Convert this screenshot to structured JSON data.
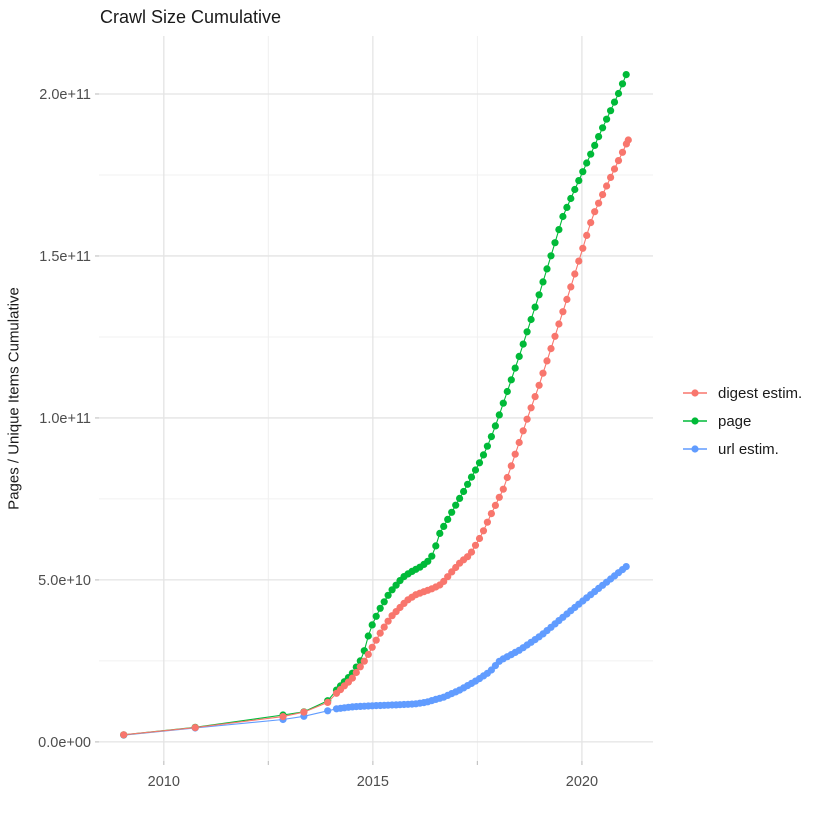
{
  "chart_data": {
    "type": "line",
    "title": "Crawl Size Cumulative",
    "xlabel": "",
    "ylabel": "Pages / Unique Items Cumulative",
    "grid": true,
    "marker": "point",
    "legend": {
      "position": "right",
      "entries": [
        "digest estim.",
        "page",
        "url estim."
      ]
    },
    "x_axis": {
      "range": [
        2008.45,
        2021.7
      ],
      "ticks_major": [
        2010,
        2015,
        2020
      ],
      "tick_labels": [
        "2010",
        "2015",
        "2020"
      ],
      "ticks_minor": [
        2012.5,
        2017.5
      ]
    },
    "y_axis": {
      "range": [
        -5900000000.0,
        217900000000.0
      ],
      "ticks_major": [
        0,
        50000000000.0,
        100000000000.0,
        150000000000.0,
        200000000000.0
      ],
      "tick_labels": [
        "0.0e+00",
        "5.0e+10",
        "1.0e+11",
        "1.5e+11",
        "2.0e+11"
      ],
      "ticks_minor": [
        25000000000.0,
        75000000000.0,
        125000000000.0,
        175000000000.0
      ]
    },
    "colors": {
      "digest": "#F8766D",
      "page": "#00BA38",
      "url": "#619CFF"
    },
    "point_interval_years": 0.095,
    "dense_from_year": 2014.0,
    "series": [
      {
        "name": "digest estim.",
        "color": "#F8766D",
        "points": [
          [
            2009.04,
            2200000000.0
          ],
          [
            2010.75,
            4400000000.0
          ],
          [
            2012.85,
            7800000000.0
          ],
          [
            2013.35,
            9200000000.0
          ],
          [
            2013.92,
            12200000000.0
          ],
          [
            2014.13,
            15000000000.0
          ],
          [
            2014.5,
            19500000000.0
          ],
          [
            2014.8,
            25000000000.0
          ],
          [
            2014.93,
            27900000000.0
          ],
          [
            2015.17,
            33500000000.0
          ],
          [
            2015.44,
            38700000000.0
          ],
          [
            2015.81,
            43600000000.0
          ],
          [
            2016.02,
            45400000000.0
          ],
          [
            2016.23,
            46400000000.0
          ],
          [
            2016.44,
            47400000000.0
          ],
          [
            2016.64,
            48700000000.0
          ],
          [
            2016.92,
            53000000000.0
          ],
          [
            2017.1,
            55500000000.0
          ],
          [
            2017.32,
            57700000000.0
          ],
          [
            2017.6,
            63900000000.0
          ],
          [
            2017.85,
            70900000000.0
          ],
          [
            2018.12,
            78000000000.0
          ],
          [
            2018.7,
            100000000000.0
          ],
          [
            2019.0,
            111000000000.0
          ],
          [
            2019.7,
            139000000000.0
          ],
          [
            2020.26,
            162400000000.0
          ],
          [
            2020.73,
            175500000000.0
          ],
          [
            2021.11,
            185800000000.0
          ]
        ]
      },
      {
        "name": "page",
        "color": "#00BA38",
        "points": [
          [
            2009.04,
            2200000000.0
          ],
          [
            2010.75,
            4500000000.0
          ],
          [
            2012.85,
            8300000000.0
          ],
          [
            2013.35,
            9300000000.0
          ],
          [
            2013.92,
            12700000000.0
          ],
          [
            2014.13,
            16000000000.0
          ],
          [
            2014.5,
            21000000000.0
          ],
          [
            2014.75,
            26000000000.0
          ],
          [
            2014.93,
            34600000000.0
          ],
          [
            2015.15,
            40700000000.0
          ],
          [
            2015.41,
            46200000000.0
          ],
          [
            2015.71,
            50700000000.0
          ],
          [
            2015.9,
            52400000000.0
          ],
          [
            2016.11,
            53800000000.0
          ],
          [
            2016.3,
            55500000000.0
          ],
          [
            2016.45,
            58000000000.0
          ],
          [
            2016.58,
            63900000000.0
          ],
          [
            2016.76,
            68000000000.0
          ],
          [
            2016.96,
            72600000000.0
          ],
          [
            2017.17,
            77300000000.0
          ],
          [
            2017.38,
            82200000000.0
          ],
          [
            2017.6,
            87300000000.0
          ],
          [
            2017.8,
            93000000000.0
          ],
          [
            2018.0,
            100000000000.0
          ],
          [
            2018.5,
            119000000000.0
          ],
          [
            2019.0,
            139000000000.0
          ],
          [
            2019.55,
            162400000000.0
          ],
          [
            2020.02,
            176000000000.0
          ],
          [
            2020.5,
            189700000000.0
          ],
          [
            2020.87,
            200000000000.0
          ],
          [
            2021.06,
            206000000000.0
          ]
        ]
      },
      {
        "name": "url estim.",
        "color": "#619CFF",
        "points": [
          [
            2009.04,
            2100000000.0
          ],
          [
            2010.75,
            4300000000.0
          ],
          [
            2012.85,
            6900000000.0
          ],
          [
            2013.35,
            7900000000.0
          ],
          [
            2013.92,
            9600000000.0
          ],
          [
            2014.13,
            10200000000.0
          ],
          [
            2014.5,
            10800000000.0
          ],
          [
            2014.9,
            11100000000.0
          ],
          [
            2015.3,
            11300000000.0
          ],
          [
            2015.7,
            11500000000.0
          ],
          [
            2016.0,
            11700000000.0
          ],
          [
            2016.3,
            12300000000.0
          ],
          [
            2016.55,
            13300000000.0
          ],
          [
            2016.68,
            13700000000.0
          ],
          [
            2016.78,
            14300000000.0
          ],
          [
            2017.08,
            16000000000.0
          ],
          [
            2017.5,
            19100000000.0
          ],
          [
            2017.8,
            21700000000.0
          ],
          [
            2018.04,
            25100000000.0
          ],
          [
            2018.52,
            28400000000.0
          ],
          [
            2019.04,
            33000000000.0
          ],
          [
            2019.52,
            38200000000.0
          ],
          [
            2020.0,
            43300000000.0
          ],
          [
            2020.56,
            49000000000.0
          ],
          [
            2021.06,
            54100000000.0
          ]
        ]
      }
    ]
  }
}
